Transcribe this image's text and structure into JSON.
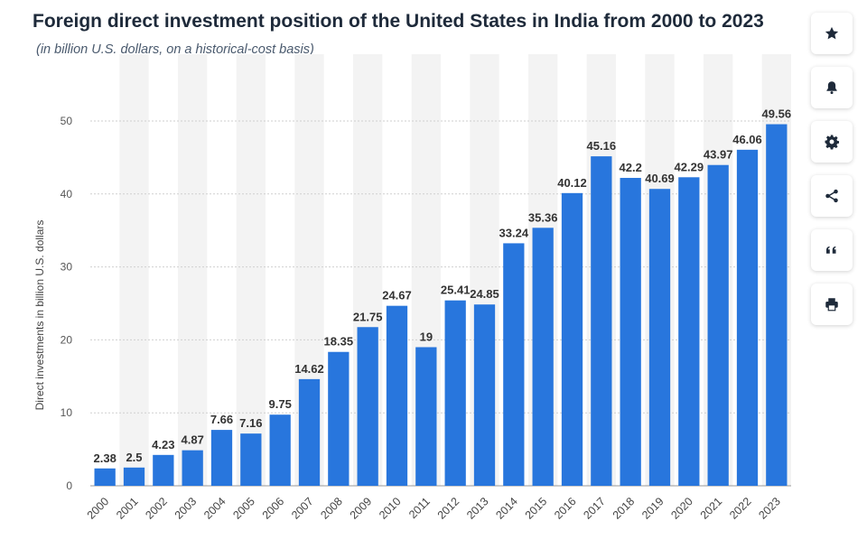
{
  "page": {
    "title": "Foreign direct investment position of the United States in India from 2000 to 2023",
    "subtitle": "(in billion U.S. dollars, on a historical-cost basis)"
  },
  "sidebar": {
    "buttons": [
      {
        "name": "favorite-button",
        "icon": "star-icon"
      },
      {
        "name": "notification-button",
        "icon": "bell-icon"
      },
      {
        "name": "settings-button",
        "icon": "gear-icon"
      },
      {
        "name": "share-button",
        "icon": "share-icon"
      },
      {
        "name": "cite-button",
        "icon": "quote-icon"
      },
      {
        "name": "print-button",
        "icon": "print-icon"
      }
    ]
  },
  "colors": {
    "bar": "#2876dd",
    "grid": "#cfcfcf",
    "text": "#333333",
    "band": "#f3f3f3"
  },
  "chart_data": {
    "type": "bar",
    "categories": [
      "2000",
      "2001",
      "2002",
      "2003",
      "2004",
      "2005",
      "2006",
      "2007",
      "2008",
      "2009",
      "2010",
      "2011",
      "2012",
      "2013",
      "2014",
      "2015",
      "2016",
      "2017",
      "2018",
      "2019",
      "2020",
      "2021",
      "2022",
      "2023"
    ],
    "values": [
      2.38,
      2.5,
      4.23,
      4.87,
      7.66,
      7.16,
      9.75,
      14.62,
      18.35,
      21.75,
      24.67,
      19,
      25.41,
      24.85,
      33.24,
      35.36,
      40.12,
      45.16,
      42.2,
      40.69,
      42.29,
      43.97,
      46.06,
      49.56
    ],
    "value_labels": [
      "2.38",
      "2.5",
      "4.23",
      "4.87",
      "7.66",
      "7.16",
      "9.75",
      "14.62",
      "18.35",
      "21.75",
      "24.67",
      "19",
      "25.41",
      "24.85",
      "33.24",
      "35.36",
      "40.12",
      "45.16",
      "42.2",
      "40.69",
      "42.29",
      "43.97",
      "46.06",
      "49.56"
    ],
    "ylabel": "Direct investments in billion U.S. dollars",
    "xlabel": "",
    "ylim": [
      0,
      50
    ],
    "yticks": [
      0,
      10,
      20,
      30,
      40,
      50
    ],
    "grid": true,
    "legend": "none"
  }
}
